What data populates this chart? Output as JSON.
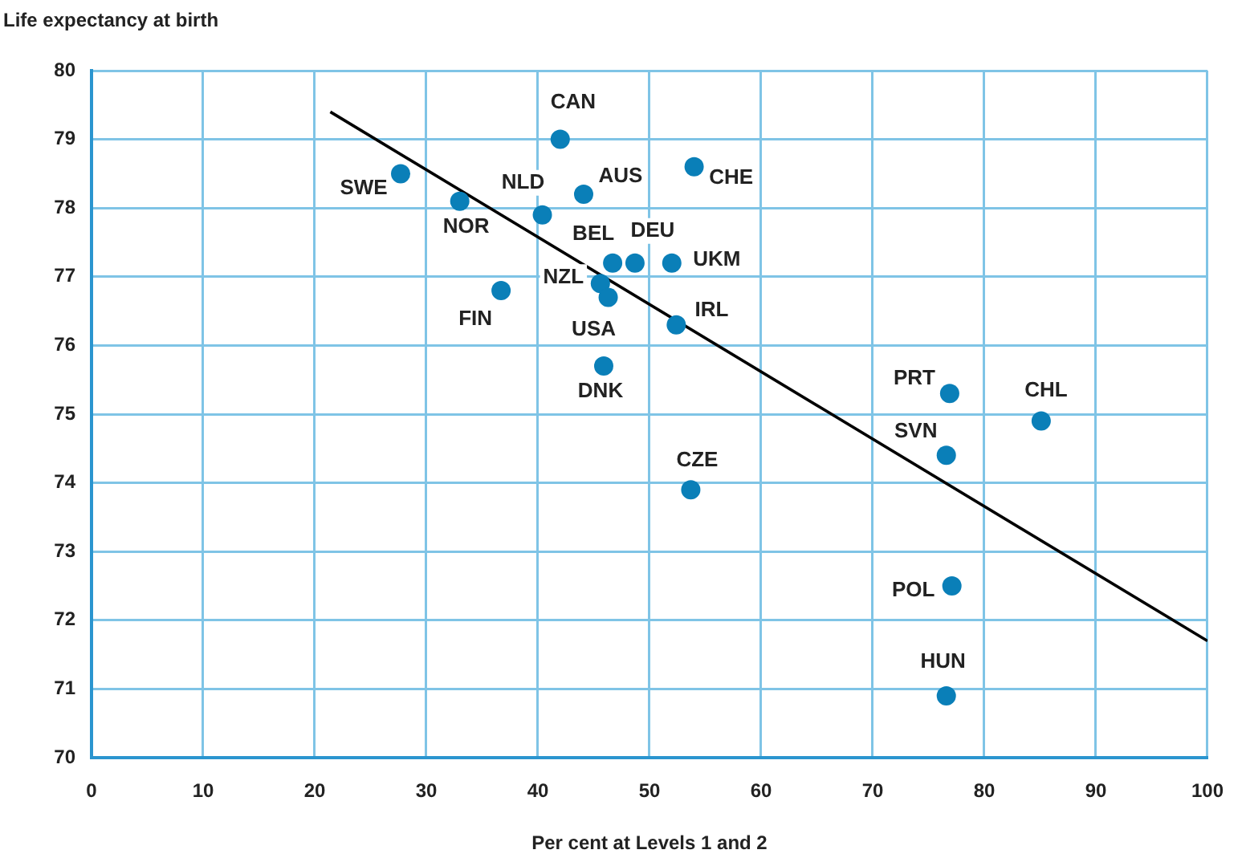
{
  "chart_data": {
    "type": "scatter",
    "ylabel": "Life expectancy at birth",
    "xlabel": "Per cent at Levels 1 and 2",
    "xlim": [
      0,
      100
    ],
    "xticks": [
      0,
      10,
      20,
      30,
      40,
      50,
      60,
      70,
      80,
      90,
      100
    ],
    "ylim": [
      70,
      80
    ],
    "yticks": [
      70,
      71,
      72,
      73,
      74,
      75,
      76,
      77,
      78,
      79,
      80
    ],
    "grid": true,
    "legend": false,
    "marker": "circle",
    "series": [
      {
        "type": "scatter",
        "color": "#0a7fb8",
        "x": [
          27.7,
          33.0,
          40.4,
          42.0,
          44.1,
          54.0,
          46.7,
          48.7,
          52.0,
          45.6,
          46.3,
          36.7,
          52.4,
          45.9,
          76.9,
          85.1,
          76.6,
          53.7,
          77.1,
          76.6
        ],
        "values": [
          78.5,
          78.1,
          77.9,
          79.0,
          78.2,
          78.6,
          77.2,
          77.2,
          77.2,
          76.9,
          76.7,
          76.8,
          76.3,
          75.7,
          75.3,
          74.9,
          74.4,
          73.9,
          72.5,
          70.9
        ]
      },
      {
        "type": "line",
        "color": "#000000",
        "marker": "none",
        "x": [
          21.4,
          100
        ],
        "values": [
          79.4,
          71.7
        ]
      }
    ],
    "annotations": [
      {
        "text": "SWE",
        "x": 27.7,
        "y": 78.5
      },
      {
        "text": "NOR",
        "x": 33.0,
        "y": 78.1
      },
      {
        "text": "NLD",
        "x": 40.4,
        "y": 77.9
      },
      {
        "text": "CAN",
        "x": 42.0,
        "y": 79.0
      },
      {
        "text": "AUS",
        "x": 44.1,
        "y": 78.2
      },
      {
        "text": "CHE",
        "x": 54.0,
        "y": 78.6
      },
      {
        "text": "BEL",
        "x": 46.7,
        "y": 77.2
      },
      {
        "text": "DEU",
        "x": 48.7,
        "y": 77.2
      },
      {
        "text": "UKM",
        "x": 52.0,
        "y": 77.2
      },
      {
        "text": "NZL",
        "x": 45.6,
        "y": 76.9
      },
      {
        "text": "USA",
        "x": 46.3,
        "y": 76.7
      },
      {
        "text": "FIN",
        "x": 36.7,
        "y": 76.8
      },
      {
        "text": "IRL",
        "x": 52.4,
        "y": 76.3
      },
      {
        "text": "DNK",
        "x": 45.9,
        "y": 75.7
      },
      {
        "text": "PRT",
        "x": 76.9,
        "y": 75.3
      },
      {
        "text": "CHL",
        "x": 85.1,
        "y": 74.9
      },
      {
        "text": "SVN",
        "x": 76.6,
        "y": 74.4
      },
      {
        "text": "CZE",
        "x": 53.7,
        "y": 73.9
      },
      {
        "text": "POL",
        "x": 77.1,
        "y": 72.5
      },
      {
        "text": "HUN",
        "x": 76.6,
        "y": 70.9
      }
    ]
  }
}
